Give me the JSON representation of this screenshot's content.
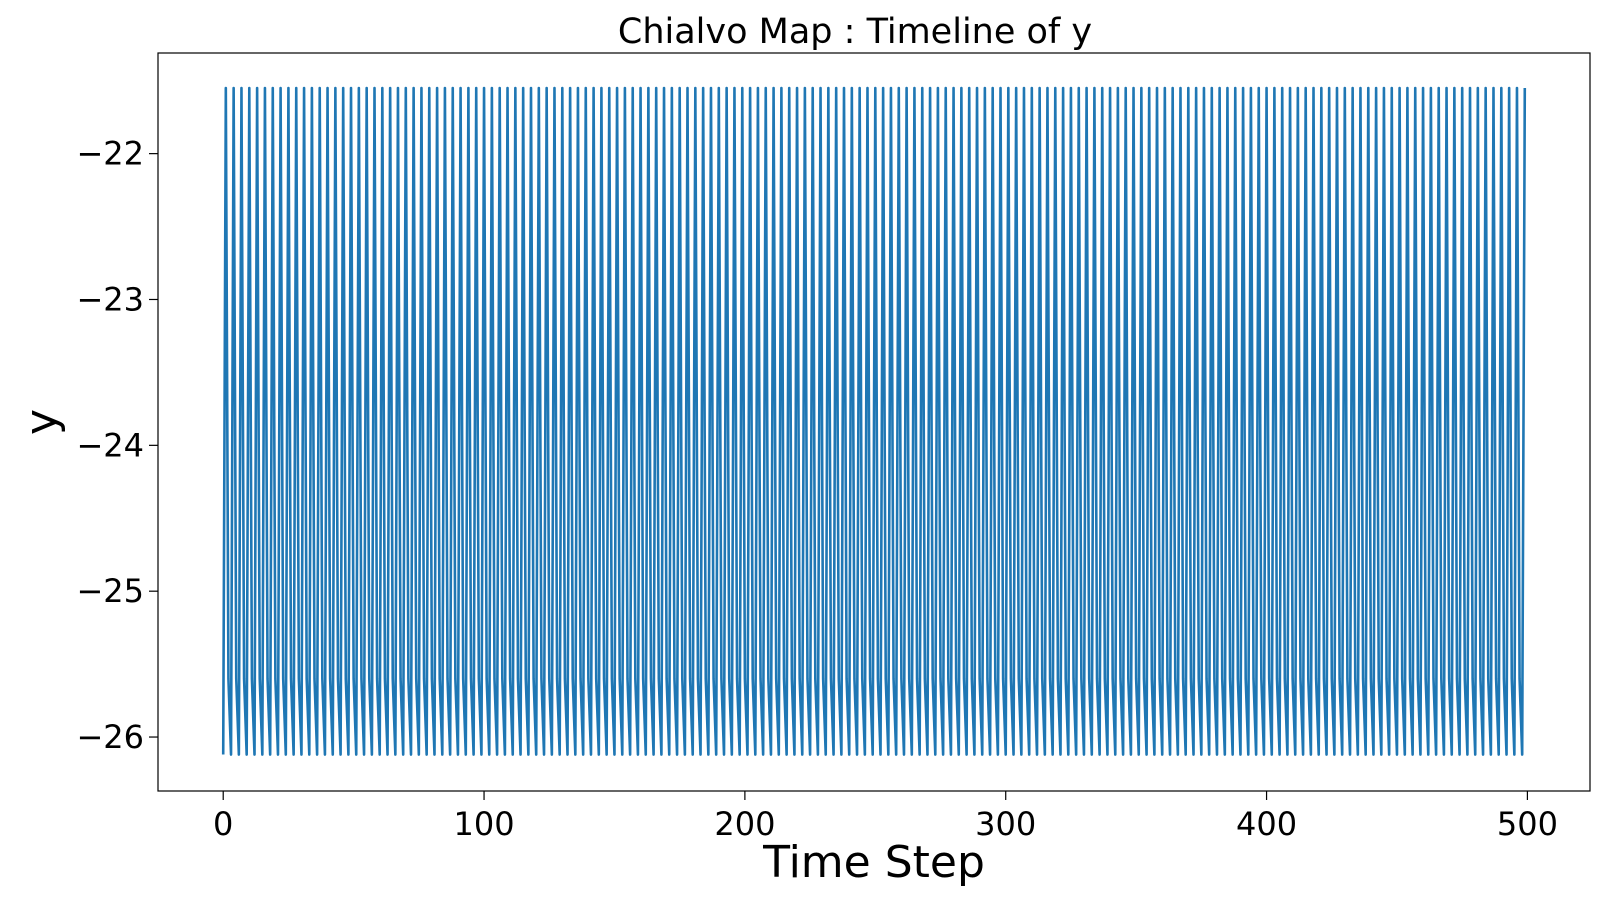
{
  "chart_data": {
    "type": "line",
    "title": "Chialvo Map : Timeline of y",
    "xlabel": "Time Step",
    "ylabel": "y",
    "xlim": [
      -25,
      524
    ],
    "ylim": [
      -26.37,
      -21.31
    ],
    "x_ticks": [
      0,
      100,
      200,
      300,
      400,
      500
    ],
    "x_tick_labels": [
      "0",
      "100",
      "200",
      "300",
      "400",
      "500"
    ],
    "y_ticks": [
      -22,
      -23,
      -24,
      -25,
      -26
    ],
    "y_tick_labels": [
      "−22",
      "−23",
      "−24",
      "−25",
      "−26"
    ],
    "grid": false,
    "legend": "none",
    "series": [
      {
        "color": "#1f77b4",
        "pattern": {
          "description": "periodic sawtooth oscillation, period 3 time steps",
          "cycle_values": [
            -26.12,
            -21.55,
            -25.6
          ],
          "n_points": 500,
          "x_start": 0,
          "x_end": 499
        }
      }
    ]
  }
}
